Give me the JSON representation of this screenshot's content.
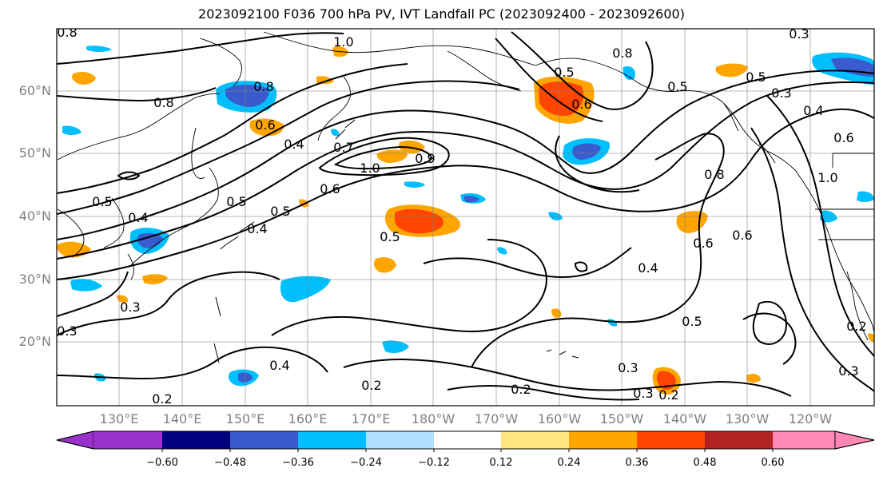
{
  "title": "2023092100 F036 700 hPa PV, IVT Landfall PC (2023092400 - 2023092600)",
  "latitude_labels": [
    "60°N",
    "50°N",
    "40°N",
    "30°N",
    "20°N"
  ],
  "longitude_labels": [
    "130°E",
    "140°E",
    "150°E",
    "160°E",
    "170°E",
    "180°W",
    "170°W",
    "160°W",
    "150°W",
    "140°W",
    "130°W",
    "120°W"
  ],
  "contour_labels": [
    "0.8",
    "1.0",
    "0.8",
    "0.6",
    "0.8",
    "0.4",
    "0.5",
    "0.7",
    "1.0",
    "0.9",
    "0.6",
    "0.5",
    "0.5",
    "0.4",
    "0.5",
    "0.4",
    "0.3",
    "0.3",
    "0.2",
    "0.4",
    "0.2",
    "0.2",
    "0.5",
    "0.8",
    "0.5",
    "0.6",
    "0.4",
    "0.3",
    "0.5",
    "0.6",
    "0.3",
    "0.2",
    "0.3",
    "0.2",
    "0.6",
    "0.4",
    "0.3",
    "0.6",
    "1.0",
    "0.8",
    "0.5",
    "0.3"
  ],
  "colorbar": {
    "ticks": [
      "−0.60",
      "−0.48",
      "−0.36",
      "−0.24",
      "−0.12",
      "0.12",
      "0.24",
      "0.36",
      "0.48",
      "0.60"
    ],
    "colors": [
      "#9932cc",
      "#000080",
      "#3a5bcd",
      "#00bfff",
      "#b0e0fe",
      "#ffffff",
      "#ffe680",
      "#ffa500",
      "#ff4500",
      "#b22222",
      "#ff88b4"
    ]
  }
}
